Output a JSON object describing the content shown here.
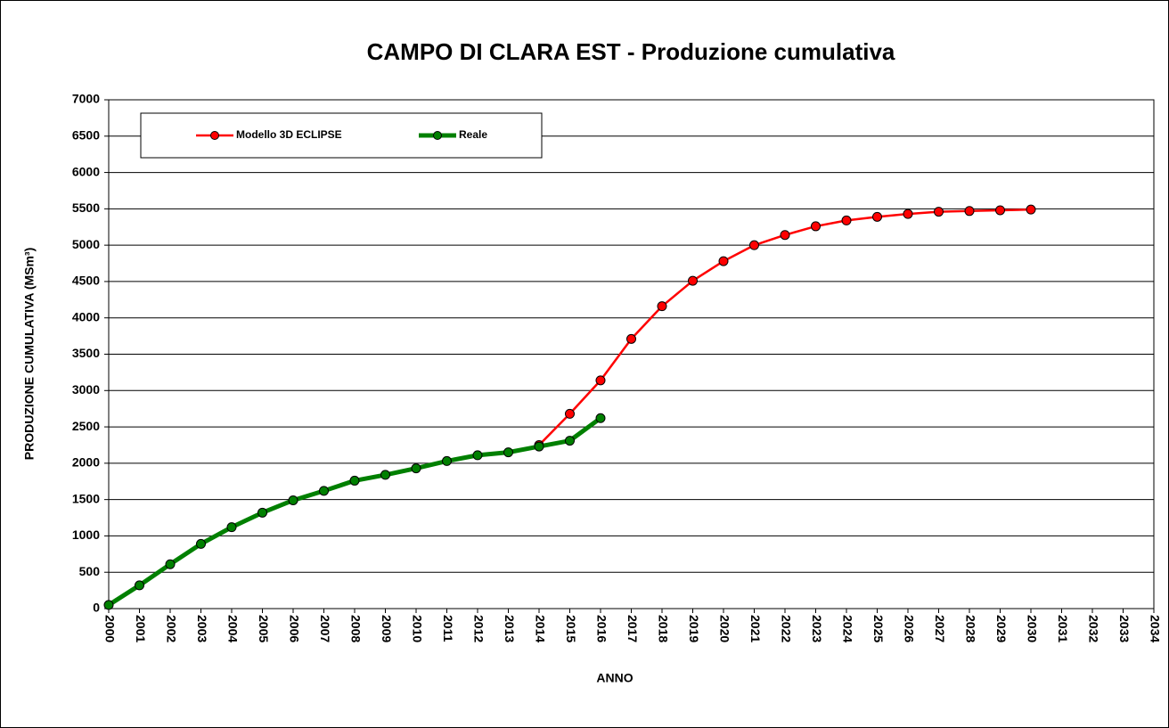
{
  "chart_data": {
    "type": "line",
    "title": "CAMPO DI CLARA EST - Produzione cumulativa",
    "x_label": "ANNO",
    "y_label": "PRODUZIONE CUMULATIVA (MSm³)",
    "x": [
      2000,
      2001,
      2002,
      2003,
      2004,
      2005,
      2006,
      2007,
      2008,
      2009,
      2010,
      2011,
      2012,
      2013,
      2014,
      2015,
      2016,
      2017,
      2018,
      2019,
      2020,
      2021,
      2022,
      2023,
      2024,
      2025,
      2026,
      2027,
      2028,
      2029,
      2030
    ],
    "series": [
      {
        "name": "Modello 3D ECLIPSE",
        "color": "#ff0000",
        "values": [
          null,
          null,
          null,
          null,
          null,
          null,
          null,
          null,
          null,
          null,
          null,
          null,
          null,
          null,
          2250,
          2680,
          3140,
          3710,
          4160,
          4510,
          4780,
          5000,
          5140,
          5260,
          5340,
          5390,
          5430,
          5460,
          5470,
          5480,
          5490
        ]
      },
      {
        "name": "Reale",
        "color": "#008000",
        "values": [
          50,
          320,
          610,
          890,
          1120,
          1320,
          1490,
          1620,
          1760,
          1840,
          1930,
          2030,
          2110,
          2150,
          2230,
          2310,
          2620,
          null,
          null,
          null,
          null,
          null,
          null,
          null,
          null,
          null,
          null,
          null,
          null,
          null,
          null
        ]
      }
    ],
    "xlim": [
      2000,
      2034
    ],
    "xticks": [
      2000,
      2001,
      2002,
      2003,
      2004,
      2005,
      2006,
      2007,
      2008,
      2009,
      2010,
      2011,
      2012,
      2013,
      2014,
      2015,
      2016,
      2017,
      2018,
      2019,
      2020,
      2021,
      2022,
      2023,
      2024,
      2025,
      2026,
      2027,
      2028,
      2029,
      2030,
      2031,
      2032,
      2033,
      2034
    ],
    "ylim": [
      0,
      7000
    ],
    "yticks": [
      0,
      500,
      1000,
      1500,
      2000,
      2500,
      3000,
      3500,
      4000,
      4500,
      5000,
      5500,
      6000,
      6500,
      7000
    ],
    "grid": true,
    "legend": "top-left"
  }
}
